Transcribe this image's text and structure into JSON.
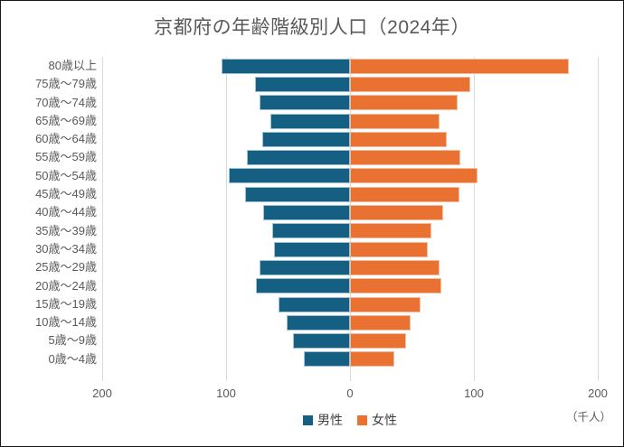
{
  "title": "京都府の年齢階級別人口（2024年）",
  "unit_label": "（千人）",
  "legend": {
    "male": "男性",
    "female": "女性"
  },
  "colors": {
    "male": "#156082",
    "female": "#E97132",
    "title_text": "#595959",
    "axis_text": "#595959",
    "legend_text": "#404040",
    "gridline": "#D9D9D9"
  },
  "chart_data": {
    "type": "bar",
    "subtype": "population-pyramid",
    "orientation": "horizontal",
    "title": "京都府の年齢階級別人口（2024年）",
    "unit": "千人",
    "categories": [
      "80歳以上",
      "75歳～79歳",
      "70歳～74歳",
      "65歳～69歳",
      "60歳～64歳",
      "55歳～59歳",
      "50歳～54歳",
      "45歳～49歳",
      "40歳～44歳",
      "35歳～39歳",
      "30歳～34歳",
      "25歳～29歳",
      "20歳～24歳",
      "15歳～19歳",
      "10歳～14歳",
      "5歳～9歳",
      "0歳～4歳"
    ],
    "series": [
      {
        "name": "男性",
        "side": "left",
        "color": "#156082",
        "values": [
          104,
          77,
          73,
          64,
          71,
          83,
          98,
          85,
          70,
          63,
          61,
          73,
          76,
          58,
          51,
          46,
          37
        ]
      },
      {
        "name": "女性",
        "side": "right",
        "color": "#E97132",
        "values": [
          177,
          97,
          87,
          72,
          78,
          89,
          103,
          88,
          75,
          66,
          63,
          72,
          74,
          57,
          49,
          45,
          36
        ]
      }
    ],
    "x_axis": {
      "ticks": [
        "200",
        "100",
        "0",
        "100",
        "200"
      ],
      "max_each_side": 200,
      "gridlines": true
    },
    "legend_position": "bottom",
    "ylim_note": "categories listed top to bottom"
  }
}
